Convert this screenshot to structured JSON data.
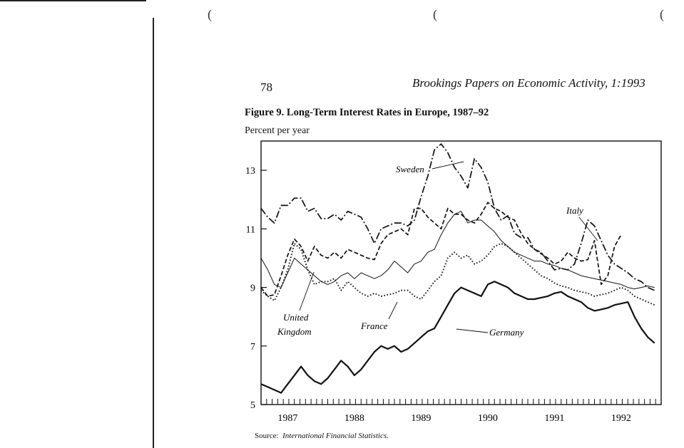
{
  "page": {
    "page_number": "78",
    "running_head": "Brookings Papers on Economic Activity, 1:1993",
    "figure_title": "Figure 9.  Long-Term Interest Rates in Europe, 1987–92",
    "y_unit_label": "Percent per year",
    "source_prefix": "Source:",
    "source_text": "International Financial Statistics."
  },
  "chart_data": {
    "type": "line",
    "title": "Figure 9.  Long-Term Interest Rates in Europe, 1987–92",
    "ylabel": "Percent per year",
    "xlabel": "",
    "ylim": [
      5,
      14
    ],
    "xlim": [
      1986.6,
      1992.6
    ],
    "yticks": [
      5,
      7,
      9,
      11,
      13
    ],
    "ytick_labels": [
      "5",
      "7",
      "9",
      "11",
      "13"
    ],
    "xtick_labels": [
      "1987",
      "1988",
      "1989",
      "1990",
      "1991",
      "1992"
    ],
    "xtick_positions": [
      1987.0,
      1988.0,
      1989.0,
      1990.0,
      1991.0,
      1992.0
    ],
    "grid": false,
    "legend": "none (series labeled directly on chart)",
    "series": [
      {
        "name": "Sweden",
        "style": "dash-dot",
        "x": [
          1986.6,
          1986.7,
          1986.8,
          1986.9,
          1987.0,
          1987.1,
          1987.2,
          1987.3,
          1987.4,
          1987.5,
          1987.6,
          1987.7,
          1987.8,
          1987.9,
          1988.0,
          1988.1,
          1988.2,
          1988.3,
          1988.4,
          1988.5,
          1988.6,
          1988.7,
          1988.8,
          1988.9,
          1989.0,
          1989.1,
          1989.2,
          1989.3,
          1989.4,
          1989.5,
          1989.6,
          1989.7,
          1989.8,
          1989.9,
          1990.0,
          1990.1,
          1990.2,
          1990.3,
          1990.4,
          1990.5,
          1990.6,
          1990.7,
          1990.8,
          1990.9,
          1991.0,
          1991.1,
          1991.2,
          1991.3,
          1991.4,
          1991.5,
          1991.6,
          1991.7,
          1991.8,
          1991.9,
          1992.0,
          1992.1,
          1992.2,
          1992.3,
          1992.4,
          1992.5
        ],
        "values": [
          11.7,
          11.4,
          11.2,
          11.8,
          11.8,
          12.05,
          12.05,
          11.6,
          11.7,
          11.35,
          11.35,
          11.5,
          11.3,
          11.6,
          11.5,
          11.4,
          11.0,
          10.5,
          11.0,
          11.1,
          11.2,
          11.2,
          11.1,
          11.3,
          12.1,
          12.8,
          13.7,
          13.9,
          13.6,
          13.1,
          12.8,
          12.4,
          13.4,
          13.1,
          12.6,
          11.7,
          11.3,
          11.45,
          10.85,
          10.7,
          10.7,
          10.3,
          10.2,
          9.9,
          9.6,
          9.65,
          9.6,
          9.8,
          10.5,
          11.3,
          11.1,
          10.6,
          10.1,
          9.8,
          9.65,
          9.5,
          9.3,
          9.2,
          9.0,
          8.9
        ]
      },
      {
        "name": "Italy",
        "style": "dashed",
        "x": [
          1986.6,
          1986.7,
          1986.8,
          1986.9,
          1987.0,
          1987.1,
          1987.2,
          1987.3,
          1987.4,
          1987.5,
          1987.6,
          1987.7,
          1987.8,
          1987.9,
          1988.0,
          1988.1,
          1988.2,
          1988.3,
          1988.4,
          1988.5,
          1988.6,
          1988.7,
          1988.8,
          1988.9,
          1989.0,
          1989.1,
          1989.2,
          1989.3,
          1989.4,
          1989.5,
          1989.6,
          1989.7,
          1989.8,
          1989.9,
          1990.0,
          1990.1,
          1990.2,
          1990.3,
          1990.4,
          1990.5,
          1990.6,
          1990.7,
          1990.8,
          1990.9,
          1991.0,
          1991.1,
          1991.2,
          1991.3,
          1991.4,
          1991.5,
          1991.6,
          1991.7,
          1991.8,
          1991.9,
          1992.0
        ],
        "values": [
          9.0,
          8.7,
          8.75,
          9.4,
          10.1,
          10.65,
          10.4,
          9.9,
          10.4,
          10.1,
          10.0,
          10.2,
          10.0,
          10.3,
          10.2,
          10.1,
          10.0,
          9.95,
          10.5,
          10.8,
          10.9,
          11.0,
          10.8,
          11.7,
          11.7,
          11.4,
          11.2,
          11.0,
          11.7,
          11.5,
          11.5,
          11.3,
          11.2,
          11.5,
          11.9,
          11.7,
          11.6,
          11.4,
          11.3,
          10.85,
          10.5,
          10.3,
          10.15,
          10.0,
          9.8,
          9.9,
          10.2,
          10.0,
          9.9,
          9.95,
          10.6,
          9.1,
          9.4,
          10.4,
          10.8
        ]
      },
      {
        "name": "United Kingdom",
        "style": "solid thin",
        "x": [
          1986.6,
          1986.7,
          1986.8,
          1986.9,
          1987.0,
          1987.1,
          1987.2,
          1987.3,
          1987.4,
          1987.5,
          1987.6,
          1987.7,
          1987.8,
          1987.9,
          1988.0,
          1988.1,
          1988.2,
          1988.3,
          1988.4,
          1988.5,
          1988.6,
          1988.7,
          1988.8,
          1988.9,
          1989.0,
          1989.1,
          1989.2,
          1989.3,
          1989.4,
          1989.5,
          1989.6,
          1989.7,
          1989.8,
          1989.9,
          1990.0,
          1990.1,
          1990.2,
          1990.3,
          1990.4,
          1990.5,
          1990.6,
          1990.7,
          1990.8,
          1990.9,
          1991.0,
          1991.1,
          1991.2,
          1991.3,
          1991.4,
          1991.5,
          1991.6,
          1991.7,
          1991.8,
          1991.9,
          1992.0,
          1992.1,
          1992.2,
          1992.3,
          1992.4,
          1992.5
        ],
        "values": [
          10.0,
          9.6,
          9.1,
          9.0,
          9.5,
          10.0,
          9.8,
          9.6,
          9.4,
          9.2,
          9.1,
          9.2,
          9.4,
          9.5,
          9.3,
          9.5,
          9.4,
          9.3,
          9.4,
          9.6,
          9.9,
          9.7,
          9.5,
          9.8,
          9.9,
          10.2,
          10.3,
          10.8,
          11.2,
          11.5,
          11.6,
          11.2,
          11.3,
          11.3,
          11.1,
          10.9,
          10.6,
          10.4,
          10.2,
          10.1,
          10.0,
          9.9,
          9.9,
          9.8,
          9.75,
          9.65,
          9.6,
          9.5,
          9.4,
          9.35,
          9.3,
          9.25,
          9.2,
          9.15,
          9.1,
          9.0,
          8.95,
          9.0,
          9.05,
          9.0
        ]
      },
      {
        "name": "France",
        "style": "dotted",
        "x": [
          1986.6,
          1986.7,
          1986.8,
          1986.9,
          1987.0,
          1987.1,
          1987.2,
          1987.3,
          1987.4,
          1987.5,
          1987.6,
          1987.7,
          1987.8,
          1987.9,
          1988.0,
          1988.1,
          1988.2,
          1988.3,
          1988.4,
          1988.5,
          1988.6,
          1988.7,
          1988.8,
          1988.9,
          1989.0,
          1989.1,
          1989.2,
          1989.3,
          1989.4,
          1989.5,
          1989.6,
          1989.7,
          1989.8,
          1989.9,
          1990.0,
          1990.1,
          1990.2,
          1990.3,
          1990.4,
          1990.5,
          1990.6,
          1990.7,
          1990.8,
          1990.9,
          1991.0,
          1991.1,
          1991.2,
          1991.3,
          1991.4,
          1991.5,
          1991.6,
          1991.7,
          1991.8,
          1991.9,
          1992.0,
          1992.1,
          1992.2,
          1992.3,
          1992.4,
          1992.5
        ],
        "values": [
          8.9,
          8.7,
          8.55,
          9.0,
          9.6,
          10.5,
          10.3,
          9.6,
          9.1,
          9.2,
          9.2,
          9.3,
          8.9,
          9.2,
          9.0,
          8.8,
          8.7,
          8.8,
          8.7,
          8.75,
          8.8,
          8.9,
          8.9,
          8.7,
          8.6,
          8.9,
          9.2,
          9.4,
          10.0,
          10.2,
          10.0,
          10.1,
          9.8,
          9.9,
          10.1,
          10.4,
          10.5,
          10.4,
          10.2,
          10.0,
          9.8,
          9.6,
          9.4,
          9.3,
          9.15,
          9.05,
          9.0,
          8.9,
          8.85,
          8.8,
          8.7,
          8.75,
          8.8,
          8.9,
          9.0,
          8.9,
          8.7,
          8.6,
          8.5,
          8.4
        ]
      },
      {
        "name": "Germany",
        "style": "solid thick",
        "x": [
          1986.6,
          1986.7,
          1986.8,
          1986.9,
          1987.0,
          1987.1,
          1987.2,
          1987.3,
          1987.4,
          1987.5,
          1987.6,
          1987.7,
          1987.8,
          1987.9,
          1988.0,
          1988.1,
          1988.2,
          1988.3,
          1988.4,
          1988.5,
          1988.6,
          1988.7,
          1988.8,
          1988.9,
          1989.0,
          1989.1,
          1989.2,
          1989.3,
          1989.4,
          1989.5,
          1989.6,
          1989.7,
          1989.8,
          1989.9,
          1990.0,
          1990.1,
          1990.2,
          1990.3,
          1990.4,
          1990.5,
          1990.6,
          1990.7,
          1990.8,
          1990.9,
          1991.0,
          1991.1,
          1991.2,
          1991.3,
          1991.4,
          1991.5,
          1991.6,
          1991.7,
          1991.8,
          1991.9,
          1992.0,
          1992.1,
          1992.2,
          1992.3,
          1992.4,
          1992.5
        ],
        "values": [
          5.7,
          5.6,
          5.5,
          5.4,
          5.7,
          6.0,
          6.3,
          6.0,
          5.8,
          5.7,
          5.9,
          6.2,
          6.5,
          6.3,
          6.0,
          6.2,
          6.5,
          6.8,
          7.0,
          6.9,
          7.0,
          6.8,
          6.9,
          7.1,
          7.3,
          7.5,
          7.6,
          8.0,
          8.4,
          8.8,
          9.0,
          8.9,
          8.8,
          8.7,
          9.1,
          9.2,
          9.1,
          9.0,
          8.8,
          8.7,
          8.6,
          8.6,
          8.65,
          8.7,
          8.8,
          8.85,
          8.7,
          8.6,
          8.5,
          8.3,
          8.2,
          8.25,
          8.3,
          8.4,
          8.45,
          8.5,
          8.0,
          7.6,
          7.3,
          7.1
        ]
      }
    ],
    "annotations": [
      {
        "text": "Sweden"
      },
      {
        "text": "Italy"
      },
      {
        "text": "United"
      },
      {
        "text": "Kingdom"
      },
      {
        "text": "France"
      },
      {
        "text": "Germany"
      }
    ]
  }
}
